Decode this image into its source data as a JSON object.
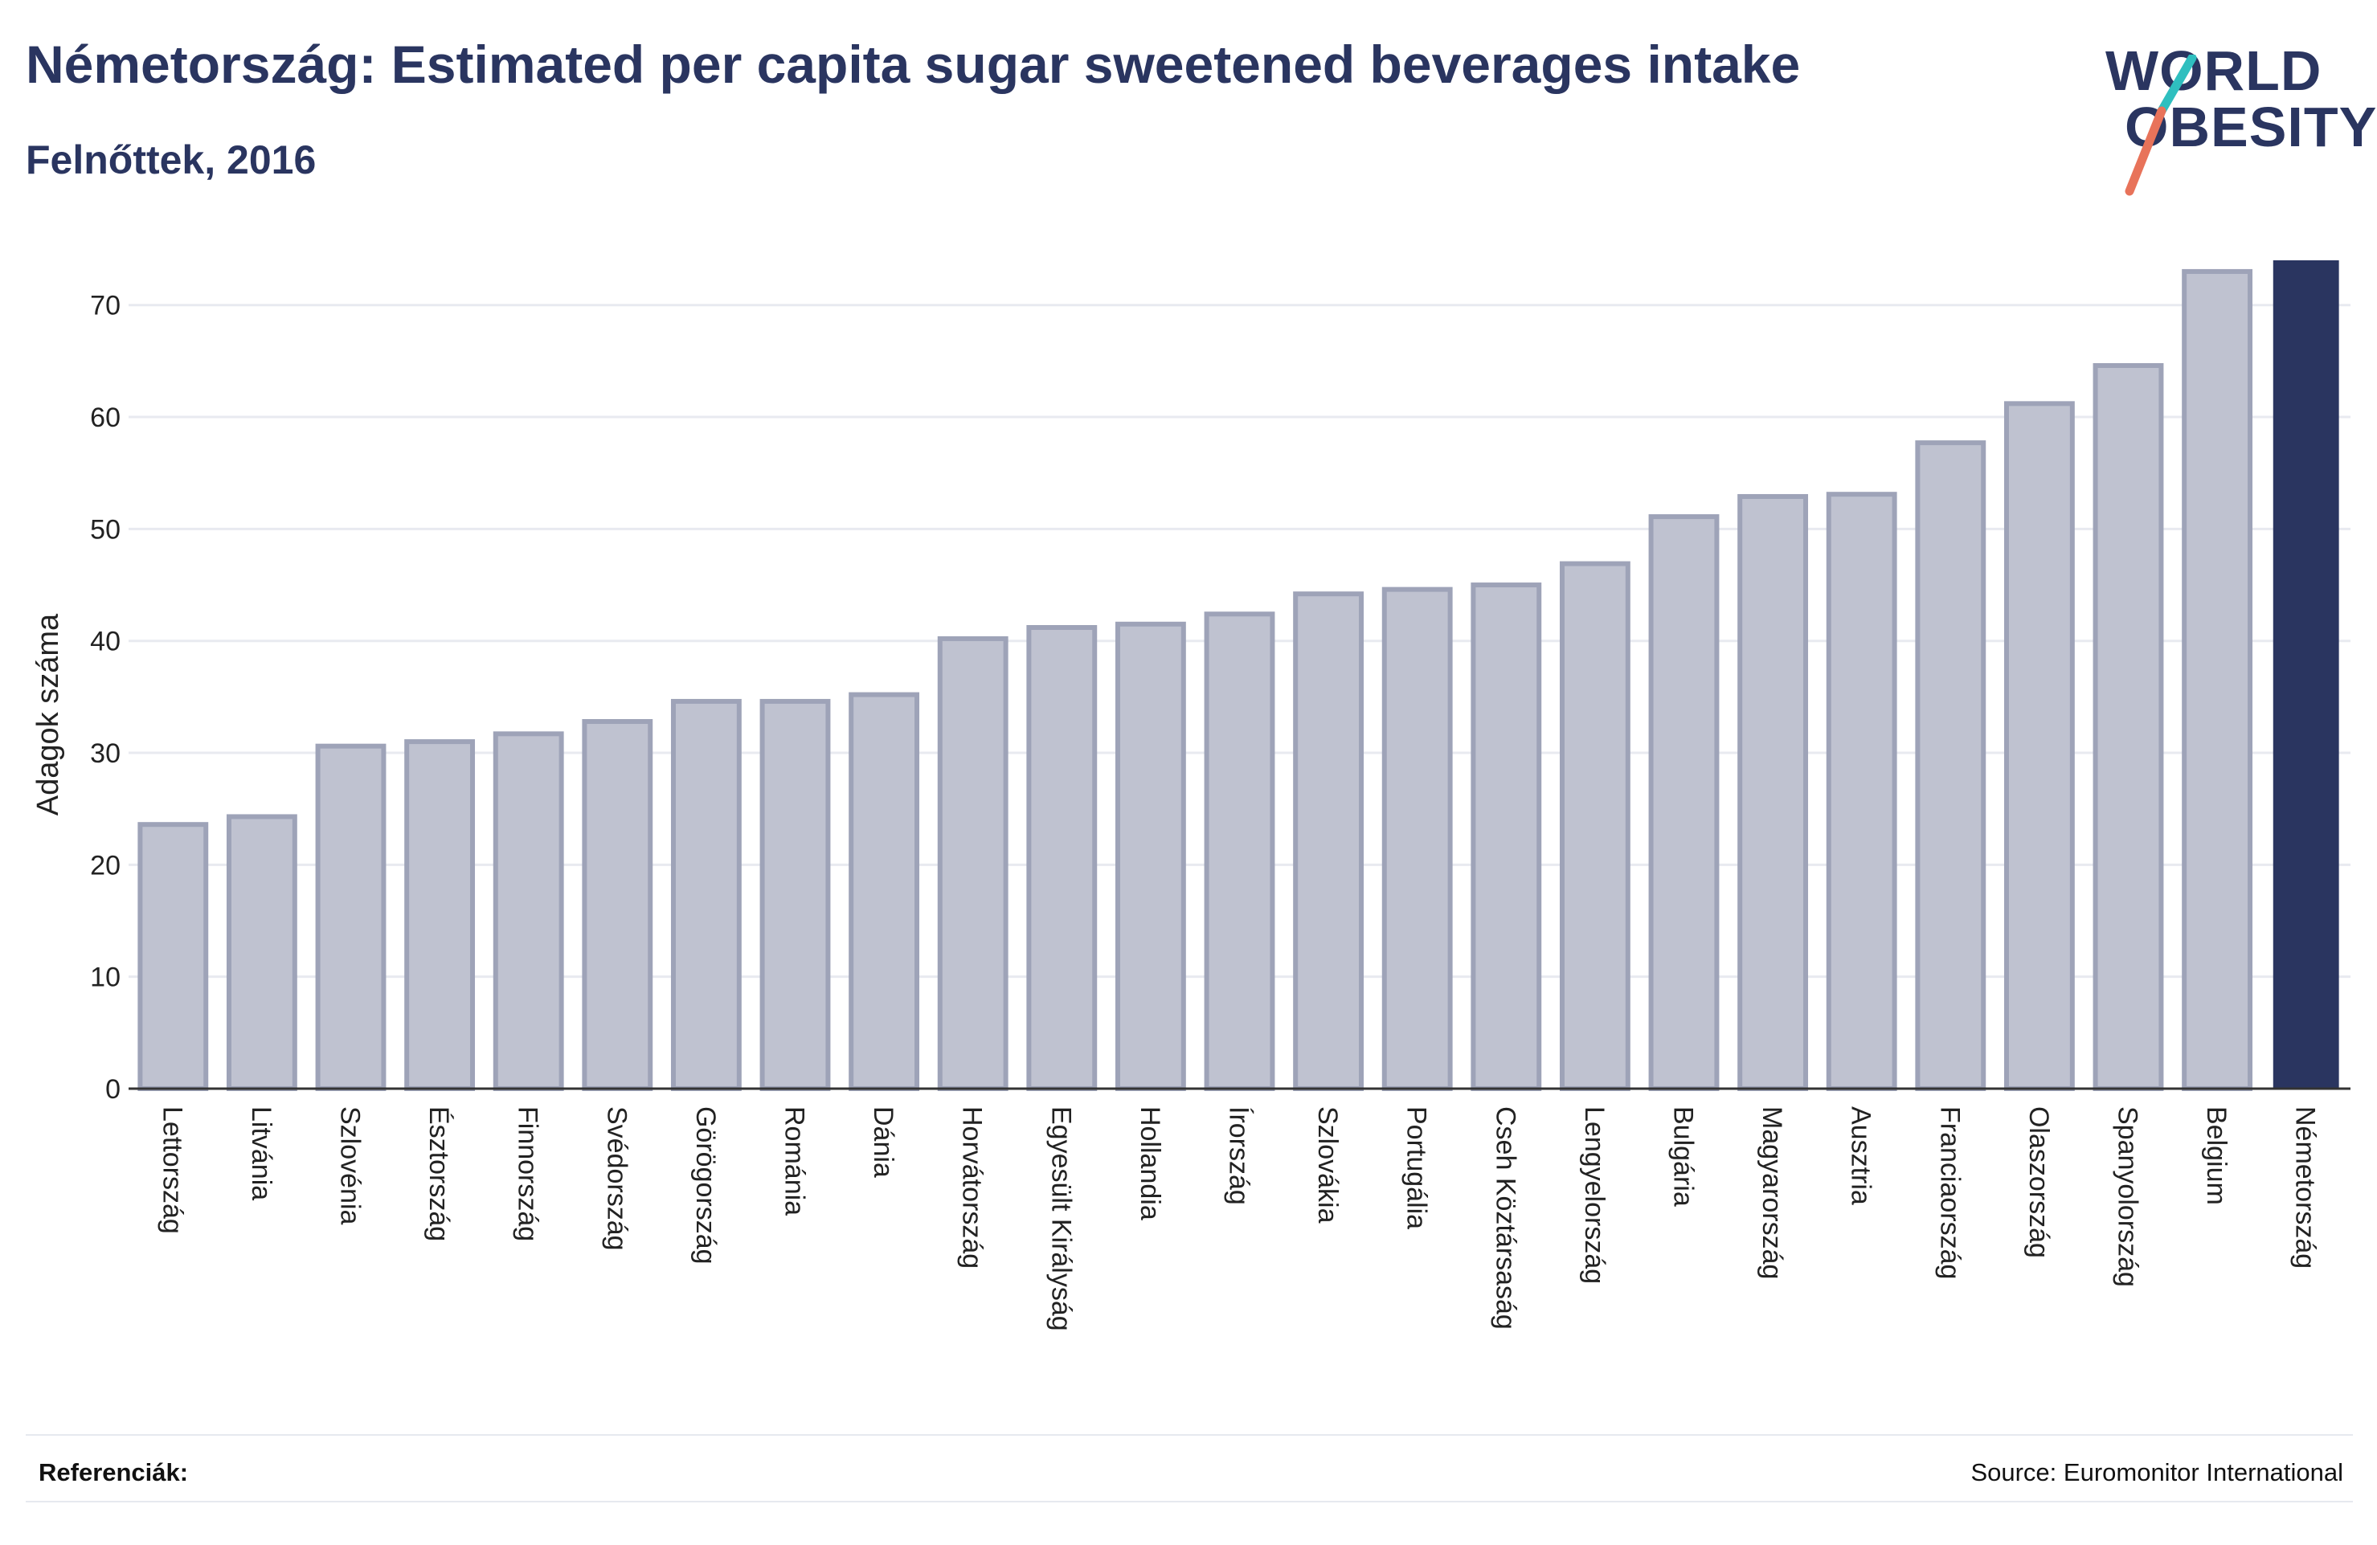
{
  "header": {
    "title": "Németország: Estimated per capita sugar sweetened beverages intake",
    "subtitle": "Felnőttek, 2016"
  },
  "logo": {
    "line1": "WORLD",
    "line2": "OBESITY"
  },
  "footer": {
    "references_label": "Referenciák:",
    "source": "Source: Euromonitor International"
  },
  "colors": {
    "bar": "#bfc2d0",
    "bar_border": "#9ea3b8",
    "highlight": "#2a3560",
    "logo_teal": "#2fbfbf",
    "logo_coral": "#e8735a"
  },
  "chart_data": {
    "type": "bar",
    "title": "Németország: Estimated per capita sugar sweetened beverages intake",
    "subtitle": "Felnőttek, 2016",
    "xlabel": "",
    "ylabel": "Adagok száma",
    "ylim": [
      0,
      74
    ],
    "yticks": [
      0,
      10,
      20,
      30,
      40,
      50,
      60,
      70
    ],
    "grid": true,
    "highlight_category": "Németország",
    "categories": [
      "Lettország",
      "Litvánia",
      "Szlovénia",
      "Észtország",
      "Finnország",
      "Svédország",
      "Görögország",
      "Románia",
      "Dánia",
      "Horvátország",
      "Egyesült Királyság",
      "Hollandia",
      "Írország",
      "Szlovákia",
      "Portugália",
      "Cseh Köztársaság",
      "Lengyelország",
      "Bulgária",
      "Magyarország",
      "Ausztria",
      "Franciaország",
      "Olaszország",
      "Spanyolország",
      "Belgium",
      "Németország"
    ],
    "values": [
      23.6,
      24.3,
      30.6,
      31.0,
      31.7,
      32.8,
      34.6,
      34.6,
      35.2,
      40.2,
      41.2,
      41.5,
      42.4,
      44.2,
      44.6,
      45.0,
      46.9,
      51.1,
      52.9,
      53.1,
      57.7,
      61.2,
      64.6,
      73.0,
      74.0
    ]
  }
}
